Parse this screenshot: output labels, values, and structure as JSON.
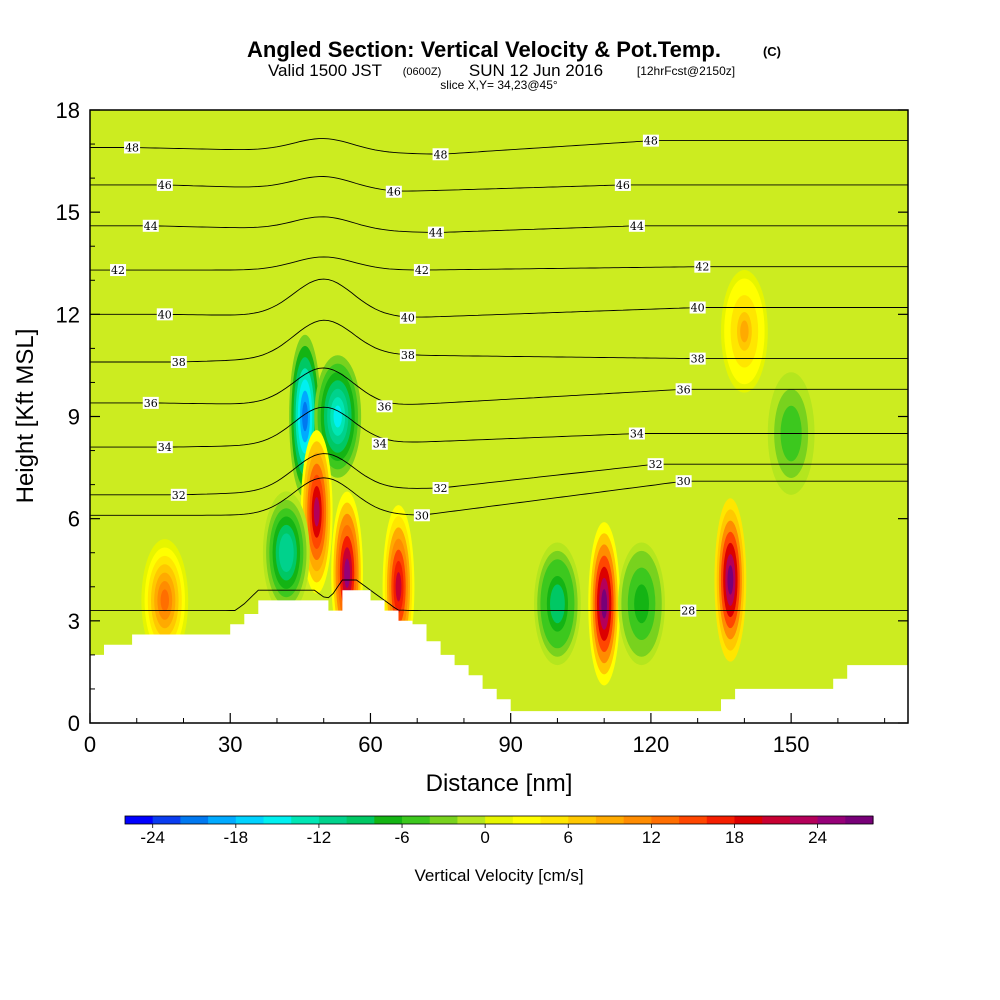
{
  "chart_data": {
    "type": "heatmap",
    "title": "Angled Section: Vertical Velocity & Pot.Temp.",
    "title_units": "(C)",
    "subtitle": {
      "valid": "Valid 1500 JST",
      "utc": "(0600Z)",
      "date": "SUN 12 Jun 2016",
      "forecast": "[12hrFcst@2150z]"
    },
    "slice": "slice X,Y= 34,23@45°",
    "xlabel": "Distance [nm]",
    "ylabel": "Height [Kft MSL]",
    "xlim": [
      0,
      175
    ],
    "ylim": [
      0,
      18
    ],
    "xticks": [
      0,
      30,
      60,
      90,
      120,
      150
    ],
    "yticks": [
      0,
      3,
      6,
      9,
      12,
      15,
      18
    ],
    "colorbar": {
      "label": "Vertical Velocity [cm/s]",
      "tick_values": [
        -24,
        -18,
        -12,
        -6,
        0,
        6,
        12,
        18,
        24
      ],
      "tick_labels": [
        "-24",
        "-18",
        "-12",
        "-6",
        "0",
        "6",
        "12",
        "18",
        "24"
      ],
      "range": [
        -26,
        28
      ],
      "colors": [
        "#0000ff",
        "#0a3cf0",
        "#0078f0",
        "#00aaff",
        "#00d2ff",
        "#00f0f0",
        "#00e6b4",
        "#00d28c",
        "#00c864",
        "#14b414",
        "#3cc81e",
        "#78d21e",
        "#b4e61e",
        "#e6f500",
        "#ffff00",
        "#ffe600",
        "#ffc800",
        "#ffaa00",
        "#ff8c00",
        "#ff6e00",
        "#ff4600",
        "#f51e00",
        "#dc0000",
        "#c80032",
        "#b4005a",
        "#960078",
        "#780078"
      ]
    },
    "velocity_features": [
      {
        "x": 46,
        "z": 9.0,
        "w": -22
      },
      {
        "x": 53,
        "z": 9.0,
        "w": -16
      },
      {
        "x": 48.5,
        "z": 6.2,
        "w": 22
      },
      {
        "x": 55,
        "z": 4.4,
        "w": 24
      },
      {
        "x": 66,
        "z": 4.0,
        "w": 20
      },
      {
        "x": 42,
        "z": 5.0,
        "w": -12
      },
      {
        "x": 16,
        "z": 3.6,
        "w": 12
      },
      {
        "x": 100,
        "z": 3.5,
        "w": -10
      },
      {
        "x": 110,
        "z": 3.5,
        "w": 26
      },
      {
        "x": 118,
        "z": 3.5,
        "w": -8
      },
      {
        "x": 137,
        "z": 4.2,
        "w": 27
      },
      {
        "x": 150,
        "z": 8.5,
        "w": -6
      },
      {
        "x": 140,
        "z": 11.5,
        "w": 8
      }
    ],
    "terrain": {
      "x": [
        0,
        3,
        6,
        9,
        15,
        20,
        25,
        30,
        33,
        36,
        39,
        42,
        45,
        48,
        51,
        54,
        57,
        60,
        63,
        66,
        69,
        72,
        75,
        78,
        81,
        84,
        87,
        90,
        93,
        96,
        99,
        102,
        105,
        108,
        111,
        114,
        117,
        120,
        123,
        126,
        129,
        132,
        135,
        138,
        141,
        144,
        147,
        150,
        153,
        156,
        159,
        162,
        165,
        168,
        171,
        175
      ],
      "z": [
        2.0,
        2.3,
        2.3,
        2.6,
        2.6,
        2.6,
        2.6,
        2.9,
        3.2,
        3.6,
        3.6,
        3.6,
        3.6,
        3.6,
        3.3,
        3.9,
        3.9,
        3.6,
        3.3,
        3.0,
        2.9,
        2.4,
        2.0,
        1.7,
        1.4,
        1.0,
        0.7,
        0.35,
        0.35,
        0.35,
        0.35,
        0.35,
        0.35,
        0.35,
        0.35,
        0.35,
        0.35,
        0.35,
        0.35,
        0.35,
        0.35,
        0.35,
        0.7,
        1.0,
        1.0,
        1.0,
        1.0,
        1.0,
        1.0,
        1.0,
        1.3,
        1.7,
        1.7,
        1.7,
        1.7,
        1.7
      ]
    },
    "theta_contours": [
      {
        "value": 48,
        "labels": [
          {
            "x": 9,
            "z": 16.9,
            "text": "48"
          },
          {
            "x": 75,
            "z": 16.7,
            "text": "48"
          },
          {
            "x": 120,
            "z": 17.1,
            "text": "48"
          }
        ]
      },
      {
        "value": 46,
        "labels": [
          {
            "x": 16,
            "z": 15.8,
            "text": "46"
          },
          {
            "x": 65,
            "z": 15.6,
            "text": "46"
          },
          {
            "x": 114,
            "z": 15.8,
            "text": "46"
          }
        ]
      },
      {
        "value": 44,
        "labels": [
          {
            "x": 13,
            "z": 14.6,
            "text": "44"
          },
          {
            "x": 74,
            "z": 14.4,
            "text": "44"
          },
          {
            "x": 117,
            "z": 14.6,
            "text": "44"
          }
        ]
      },
      {
        "value": 42,
        "labels": [
          {
            "x": 6,
            "z": 13.3,
            "text": "42"
          },
          {
            "x": 71,
            "z": 13.3,
            "text": "42"
          },
          {
            "x": 131,
            "z": 13.4,
            "text": "42"
          }
        ]
      },
      {
        "value": 40,
        "labels": [
          {
            "x": 16,
            "z": 12.0,
            "text": "40"
          },
          {
            "x": 68,
            "z": 11.9,
            "text": "40"
          },
          {
            "x": 130,
            "z": 12.2,
            "text": "40"
          }
        ]
      },
      {
        "value": 38,
        "labels": [
          {
            "x": 19,
            "z": 10.6,
            "text": "38"
          },
          {
            "x": 68,
            "z": 10.8,
            "text": "38"
          },
          {
            "x": 130,
            "z": 10.7,
            "text": "38"
          }
        ]
      },
      {
        "value": 36,
        "labels": [
          {
            "x": 13,
            "z": 9.4,
            "text": "36"
          },
          {
            "x": 63,
            "z": 9.3,
            "text": "36"
          },
          {
            "x": 127,
            "z": 9.8,
            "text": "36"
          }
        ]
      },
      {
        "value": 34,
        "labels": [
          {
            "x": 16,
            "z": 8.1,
            "text": "34"
          },
          {
            "x": 62,
            "z": 8.2,
            "text": "34"
          },
          {
            "x": 117,
            "z": 8.5,
            "text": "34"
          }
        ]
      },
      {
        "value": 32,
        "labels": [
          {
            "x": 19,
            "z": 6.7,
            "text": "32"
          },
          {
            "x": 75,
            "z": 6.9,
            "text": "32"
          },
          {
            "x": 121,
            "z": 7.6,
            "text": "32"
          }
        ]
      },
      {
        "value": 30,
        "labels": [
          {
            "x": 71,
            "z": 6.1,
            "text": "30"
          },
          {
            "x": 127,
            "z": 7.1,
            "text": "30"
          }
        ]
      },
      {
        "value": 28,
        "labels": [
          {
            "x": 128,
            "z": 3.3,
            "text": "28"
          }
        ]
      }
    ]
  }
}
